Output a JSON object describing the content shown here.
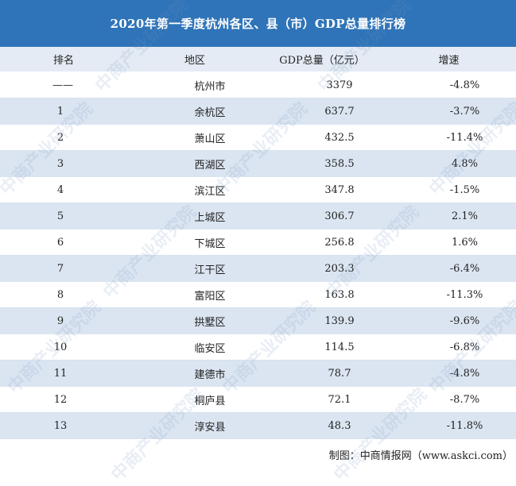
{
  "title": "2020年第一季度杭州各区、县（市）GDP总量排行榜",
  "columns": [
    "排名",
    "地区",
    "GDP总量（亿元）",
    "增速"
  ],
  "rows": [
    {
      "rank": "——",
      "region": "杭州市",
      "gdp": "3379",
      "growth": "-4.8%"
    },
    {
      "rank": "1",
      "region": "余杭区",
      "gdp": "637.7",
      "growth": "-3.7%"
    },
    {
      "rank": "2",
      "region": "萧山区",
      "gdp": "432.5",
      "growth": "-11.4%"
    },
    {
      "rank": "3",
      "region": "西湖区",
      "gdp": "358.5",
      "growth": "4.8%"
    },
    {
      "rank": "4",
      "region": "滨江区",
      "gdp": "347.8",
      "growth": "-1.5%"
    },
    {
      "rank": "5",
      "region": "上城区",
      "gdp": "306.7",
      "growth": "2.1%"
    },
    {
      "rank": "6",
      "region": "下城区",
      "gdp": "256.8",
      "growth": "1.6%"
    },
    {
      "rank": "7",
      "region": "江干区",
      "gdp": "203.3",
      "growth": "-6.4%"
    },
    {
      "rank": "8",
      "region": "富阳区",
      "gdp": "163.8",
      "growth": "-11.3%"
    },
    {
      "rank": "9",
      "region": "拱墅区",
      "gdp": "139.9",
      "growth": "-9.6%"
    },
    {
      "rank": "10",
      "region": "临安区",
      "gdp": "114.5",
      "growth": "-6.8%"
    },
    {
      "rank": "11",
      "region": "建德市",
      "gdp": "78.7",
      "growth": "-4.8%"
    },
    {
      "rank": "12",
      "region": "桐庐县",
      "gdp": "72.1",
      "growth": "-8.7%"
    },
    {
      "rank": "13",
      "region": "淳安县",
      "gdp": "48.3",
      "growth": "-11.8%"
    }
  ],
  "source": "制图：中商情报网（www.askci.com）",
  "watermark": "中商产业研究院",
  "colors": {
    "title_bg": "#2f74b8",
    "header_bg": "#e4ebf4",
    "stripe_bg": "#dbe5f1",
    "row_bg": "#ffffff"
  }
}
